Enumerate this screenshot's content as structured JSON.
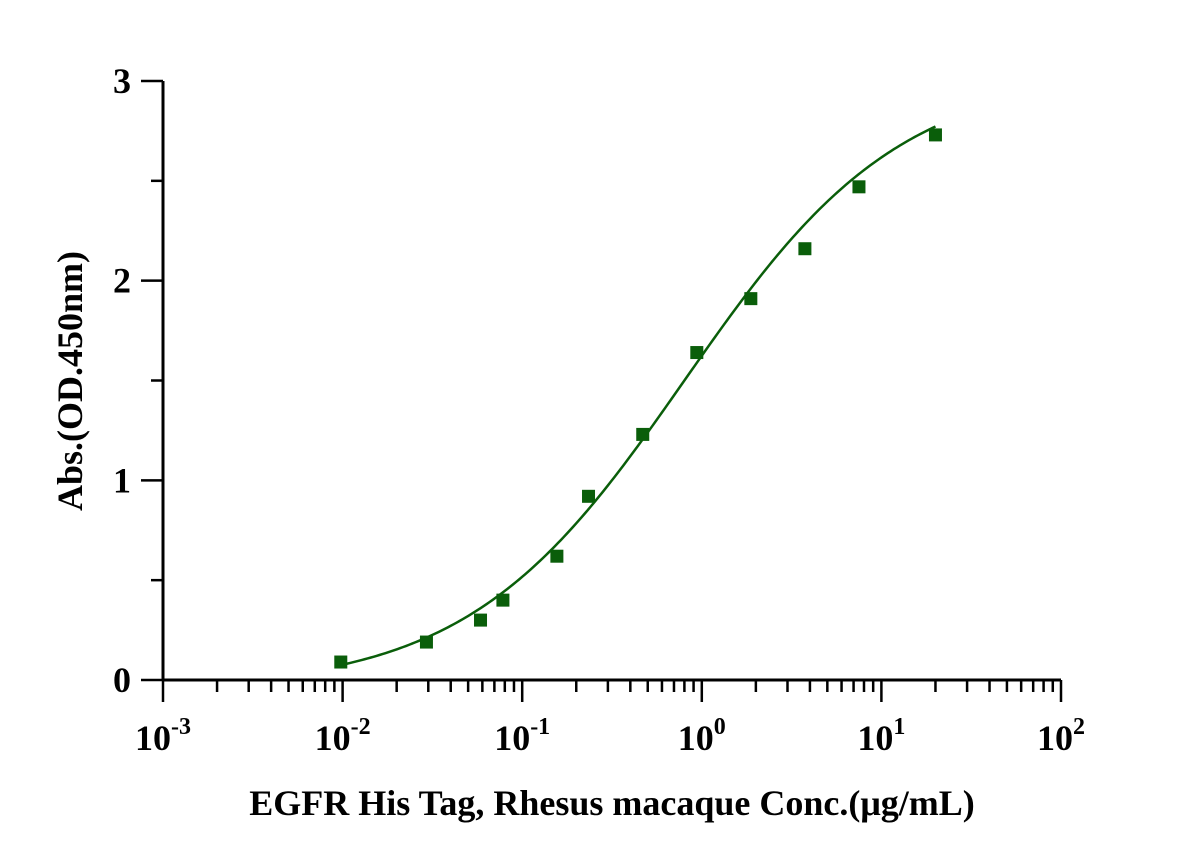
{
  "chart_data": {
    "type": "scatter",
    "title": "",
    "xlabel": "EGFR His Tag, Rhesus macaque Conc.(μg/mL)",
    "ylabel": "Abs.(OD.450nm)",
    "x_scale": "log",
    "xlim": [
      0.001,
      100
    ],
    "ylim": [
      0,
      3
    ],
    "grid": false,
    "legend": "none",
    "x_ticks": [
      {
        "value": 0.001,
        "base": "10",
        "exp": "-3"
      },
      {
        "value": 0.01,
        "base": "10",
        "exp": "-2"
      },
      {
        "value": 0.1,
        "base": "10",
        "exp": "-1"
      },
      {
        "value": 1,
        "base": "10",
        "exp": "0"
      },
      {
        "value": 10,
        "base": "10",
        "exp": "1"
      },
      {
        "value": 100,
        "base": "10",
        "exp": "2"
      }
    ],
    "y_ticks": [
      {
        "value": 0,
        "label": "0"
      },
      {
        "value": 1,
        "label": "1"
      },
      {
        "value": 2,
        "label": "2"
      },
      {
        "value": 3,
        "label": "3"
      }
    ],
    "y_minor_ticks": [
      0.5,
      1.5,
      2.5
    ],
    "series": [
      {
        "marker": "square",
        "color": "#0a5e0a",
        "x": [
          0.00977,
          0.0293,
          0.0586,
          0.0781,
          0.156,
          0.234,
          0.469,
          0.938,
          1.875,
          3.75,
          7.5,
          20
        ],
        "y": [
          0.09,
          0.19,
          0.3,
          0.4,
          0.62,
          0.92,
          1.23,
          1.64,
          1.91,
          2.16,
          2.47,
          2.73
        ]
      }
    ],
    "fit_curve": {
      "model": "4PL",
      "color": "#0a5e0a",
      "bottom": -0.05,
      "top": 3.05,
      "ec50": 0.8,
      "hill": 0.72,
      "x_range": [
        0.00977,
        20
      ]
    }
  }
}
